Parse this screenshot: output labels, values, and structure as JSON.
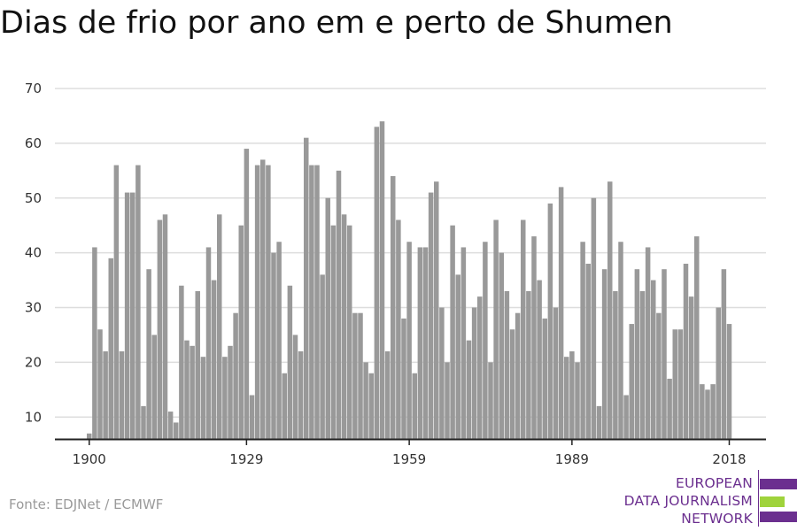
{
  "title": "Dias de frio por ano em e perto de Shumen",
  "source": "Fonte: EDJNet / ECMWF",
  "logo": {
    "lines": [
      "EUROPEAN",
      "DATA JOURNALISM",
      "NETWORK"
    ],
    "colors": {
      "purple": "#6b2f8f",
      "green": "#9fd33c"
    }
  },
  "colors": {
    "bar": "#999999",
    "grid": "#dddddd",
    "axis": "#222222",
    "text": "#333333"
  },
  "chart_data": {
    "type": "bar",
    "title": "Dias de frio por ano em e perto de Shumen",
    "xlabel": "",
    "ylabel": "",
    "x_start": 1900,
    "x": [
      1900,
      1901,
      1902,
      1903,
      1904,
      1905,
      1906,
      1907,
      1908,
      1909,
      1910,
      1911,
      1912,
      1913,
      1914,
      1915,
      1916,
      1917,
      1918,
      1919,
      1920,
      1921,
      1922,
      1923,
      1924,
      1925,
      1926,
      1927,
      1928,
      1929,
      1930,
      1931,
      1932,
      1933,
      1934,
      1935,
      1936,
      1937,
      1938,
      1939,
      1940,
      1941,
      1942,
      1943,
      1944,
      1945,
      1946,
      1947,
      1948,
      1949,
      1950,
      1951,
      1952,
      1953,
      1954,
      1955,
      1956,
      1957,
      1958,
      1959,
      1960,
      1961,
      1962,
      1963,
      1964,
      1965,
      1966,
      1967,
      1968,
      1969,
      1970,
      1971,
      1972,
      1973,
      1974,
      1975,
      1976,
      1977,
      1978,
      1979,
      1980,
      1981,
      1982,
      1983,
      1984,
      1985,
      1986,
      1987,
      1988,
      1989,
      1990,
      1991,
      1992,
      1993,
      1994,
      1995,
      1996,
      1997,
      1998,
      1999,
      2000,
      2001,
      2002,
      2003,
      2004,
      2005,
      2006,
      2007,
      2008,
      2009,
      2010,
      2011,
      2012,
      2013,
      2014,
      2015,
      2016,
      2017,
      2018
    ],
    "values": [
      7,
      41,
      26,
      22,
      39,
      56,
      22,
      51,
      51,
      56,
      12,
      37,
      25,
      46,
      47,
      11,
      9,
      34,
      24,
      23,
      33,
      21,
      41,
      35,
      47,
      21,
      23,
      29,
      45,
      59,
      14,
      56,
      57,
      56,
      40,
      42,
      18,
      34,
      25,
      22,
      61,
      56,
      56,
      36,
      50,
      45,
      55,
      47,
      45,
      29,
      29,
      20,
      18,
      63,
      64,
      22,
      54,
      46,
      28,
      42,
      18,
      41,
      41,
      51,
      53,
      30,
      20,
      45,
      36,
      41,
      24,
      30,
      32,
      42,
      20,
      46,
      40,
      33,
      26,
      29,
      46,
      33,
      43,
      35,
      28,
      49,
      30,
      52,
      21,
      22,
      20,
      42,
      38,
      50,
      12,
      37,
      53,
      33,
      42,
      14,
      27,
      37,
      33,
      41,
      35,
      29,
      37,
      17,
      26,
      26,
      38,
      32,
      43,
      16,
      15,
      16,
      30,
      37,
      27
    ],
    "ylim": [
      6,
      70
    ],
    "y_ticks": [
      10,
      20,
      30,
      40,
      50,
      60,
      70
    ],
    "x_ticks": [
      1900,
      1929,
      1959,
      1989,
      2018
    ],
    "grid": true
  }
}
